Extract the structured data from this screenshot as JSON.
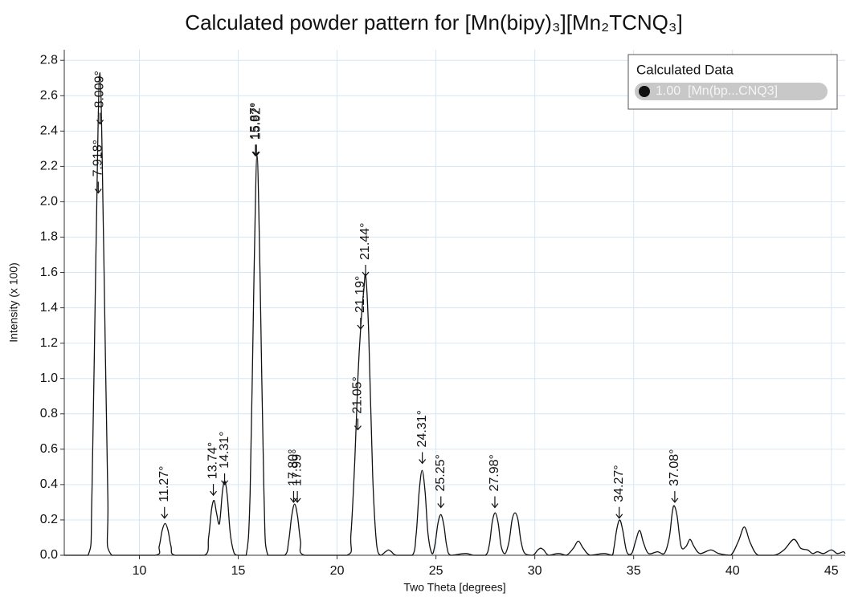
{
  "chart_data": {
    "type": "line",
    "title": "Calculated powder pattern for [Mn(bipy)₃][Mn₂TCNQ₃]",
    "x_label": "Two Theta [degrees]",
    "y_label": "Intensity (x 100)",
    "xlim": [
      6.2,
      45.7
    ],
    "ylim": [
      0,
      2.86
    ],
    "xticks": [
      10,
      15,
      20,
      25,
      30,
      35,
      40,
      45
    ],
    "yticks": [
      {
        "value": 0,
        "label": "0.0"
      },
      {
        "value": 0.2,
        "label": "0.2"
      },
      {
        "value": 0.4,
        "label": "0.4"
      },
      {
        "value": 0.6,
        "label": "0.6"
      },
      {
        "value": 0.8,
        "label": "0.8"
      },
      {
        "value": 1.0,
        "label": "1.0"
      },
      {
        "value": 1.2,
        "label": "1.2"
      },
      {
        "value": 1.4,
        "label": "1.4"
      },
      {
        "value": 1.6,
        "label": "1.6"
      },
      {
        "value": 1.8,
        "label": "1.8"
      },
      {
        "value": 2.0,
        "label": "2.0"
      },
      {
        "value": 2.2,
        "label": "2.2"
      },
      {
        "value": 2.4,
        "label": "2.4"
      },
      {
        "value": 2.6,
        "label": "2.6"
      },
      {
        "value": 2.8,
        "label": "2.8"
      }
    ],
    "grid": true,
    "grid_color": "#d6e6f5",
    "legend_title": "Calculated Data",
    "legend_position": "top-right",
    "x": [
      6.2,
      7.4,
      7.6,
      7.8,
      8.0,
      8.2,
      8.4,
      8.6,
      10.8,
      11.0,
      11.15,
      11.3,
      11.45,
      11.6,
      11.8,
      13.3,
      13.5,
      13.65,
      13.78,
      13.9,
      14.05,
      14.2,
      14.32,
      14.45,
      14.6,
      14.8,
      15.0,
      15.4,
      15.6,
      15.8,
      15.95,
      16.1,
      16.3,
      16.5,
      17.35,
      17.55,
      17.7,
      17.85,
      18.0,
      18.15,
      18.35,
      20.5,
      20.7,
      20.9,
      21.05,
      21.2,
      21.35,
      21.45,
      21.6,
      21.8,
      22.0,
      22.2,
      22.45,
      22.6,
      22.75,
      23.0,
      23.8,
      24.0,
      24.15,
      24.3,
      24.45,
      24.6,
      24.8,
      24.95,
      25.1,
      25.25,
      25.4,
      25.55,
      25.75,
      26.5,
      26.9,
      27.5,
      27.7,
      27.85,
      28.0,
      28.15,
      28.3,
      28.5,
      28.7,
      28.85,
      29.0,
      29.15,
      29.3,
      29.5,
      29.9,
      30.15,
      30.3,
      30.45,
      30.7,
      31.2,
      31.6,
      31.95,
      32.2,
      32.45,
      32.8,
      33.5,
      33.9,
      34.0,
      34.15,
      34.3,
      34.45,
      34.65,
      34.9,
      35.1,
      35.3,
      35.5,
      35.75,
      36.2,
      36.55,
      36.8,
      36.95,
      37.05,
      37.2,
      37.4,
      37.65,
      37.85,
      38.05,
      38.35,
      38.9,
      39.3,
      39.9,
      40.3,
      40.6,
      40.9,
      41.3,
      42.1,
      42.6,
      43.1,
      43.45,
      43.8,
      44.05,
      44.3,
      44.6,
      45.0,
      45.3,
      45.6,
      45.7
    ],
    "series": [
      {
        "name": "1.00  [Mn(bp...CNQ3]",
        "color": "#111111",
        "values": [
          0,
          0,
          0.35,
          1.7,
          2.73,
          1.7,
          0.35,
          0,
          0,
          0.05,
          0.14,
          0.18,
          0.14,
          0.05,
          0,
          0,
          0.1,
          0.26,
          0.31,
          0.24,
          0.18,
          0.36,
          0.42,
          0.33,
          0.12,
          0.01,
          0,
          0,
          0.35,
          1.6,
          2.26,
          1.6,
          0.35,
          0,
          0,
          0.08,
          0.22,
          0.29,
          0.22,
          0.08,
          0,
          0,
          0.12,
          0.55,
          1.0,
          1.3,
          1.5,
          1.58,
          1.25,
          0.45,
          0.06,
          0,
          0.02,
          0.03,
          0.02,
          0,
          0,
          0.12,
          0.36,
          0.48,
          0.36,
          0.12,
          0.01,
          0.06,
          0.18,
          0.23,
          0.17,
          0.05,
          0,
          0.01,
          0,
          0,
          0.06,
          0.19,
          0.24,
          0.18,
          0.05,
          0.01,
          0.08,
          0.2,
          0.24,
          0.2,
          0.08,
          0.01,
          0,
          0.03,
          0.04,
          0.03,
          0,
          0.01,
          0,
          0.04,
          0.08,
          0.04,
          0,
          0.01,
          0,
          0.04,
          0.15,
          0.2,
          0.14,
          0.02,
          0.01,
          0.08,
          0.14,
          0.07,
          0.01,
          0.02,
          0.01,
          0.1,
          0.24,
          0.28,
          0.22,
          0.05,
          0.05,
          0.09,
          0.05,
          0.01,
          0.03,
          0.01,
          0,
          0.08,
          0.16,
          0.07,
          0,
          0,
          0.03,
          0.09,
          0.04,
          0.03,
          0.01,
          0.02,
          0.01,
          0.03,
          0.01,
          0.02,
          0.01
        ]
      }
    ],
    "annotations": [
      {
        "text": "8.009°",
        "x": 8.009,
        "y": 2.44
      },
      {
        "text": "7.918°",
        "x": 7.918,
        "y": 2.05
      },
      {
        "text": "11.27°",
        "x": 11.27,
        "y": 0.21
      },
      {
        "text": "13.74°",
        "x": 13.74,
        "y": 0.34
      },
      {
        "text": "14.31°",
        "x": 14.31,
        "y": 0.4
      },
      {
        "text": "15.87°",
        "x": 15.87,
        "y": 2.26
      },
      {
        "text": "15.92°",
        "x": 15.92,
        "y": 2.26
      },
      {
        "text": "17.80°",
        "x": 17.8,
        "y": 0.3
      },
      {
        "text": "17.99°",
        "x": 17.99,
        "y": 0.3
      },
      {
        "text": "21.05°",
        "x": 21.05,
        "y": 0.71
      },
      {
        "text": "21.19°",
        "x": 21.19,
        "y": 1.28
      },
      {
        "text": "21.44°",
        "x": 21.44,
        "y": 1.58
      },
      {
        "text": "24.31°",
        "x": 24.31,
        "y": 0.52
      },
      {
        "text": "25.25°",
        "x": 25.25,
        "y": 0.27
      },
      {
        "text": "27.98°",
        "x": 27.98,
        "y": 0.27
      },
      {
        "text": "34.27°",
        "x": 34.27,
        "y": 0.21
      },
      {
        "text": "37.08°",
        "x": 37.08,
        "y": 0.3
      }
    ]
  }
}
